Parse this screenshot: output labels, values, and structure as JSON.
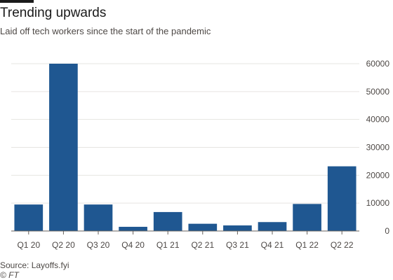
{
  "title": "Trending upwards",
  "subtitle": "Laid off tech workers since the start of the pandemic",
  "source": "Source: Layoffs.fyi",
  "credit": "© FT",
  "colors": {
    "bar": "#1f5791",
    "grid": "#e6e4e1",
    "axis": "#66605c",
    "text": "#4d4845"
  },
  "chart_data": {
    "type": "bar",
    "categories": [
      "Q1 20",
      "Q2 20",
      "Q3 20",
      "Q4 20",
      "Q1 21",
      "Q2 21",
      "Q3 21",
      "Q4 21",
      "Q1 22",
      "Q2 22"
    ],
    "values": [
      9500,
      60000,
      9500,
      1500,
      6800,
      2600,
      2000,
      3200,
      9700,
      23200
    ],
    "ylim": [
      0,
      60000
    ],
    "yticks": [
      0,
      10000,
      20000,
      30000,
      40000,
      50000,
      60000
    ],
    "ytick_labels": [
      "0",
      "10000",
      "20000",
      "30000",
      "40000",
      "50000",
      "60000"
    ],
    "y_axis_side": "right",
    "grid": true
  }
}
